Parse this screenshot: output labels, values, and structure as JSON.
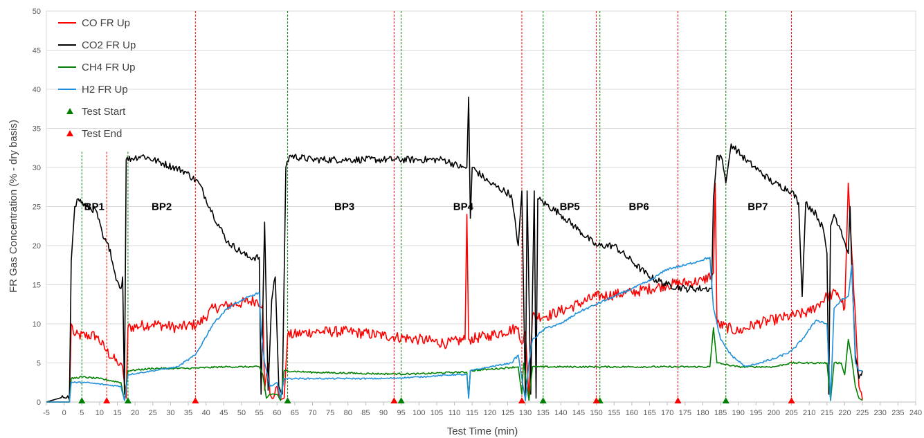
{
  "chart_data": {
    "type": "line",
    "title": "",
    "xlabel": "Test Time (min)",
    "ylabel": "FR Gas Concentration (% - dry basis)",
    "xlim": [
      -5,
      240
    ],
    "ylim": [
      0,
      50
    ],
    "x_ticks": [
      -5,
      0,
      5,
      10,
      15,
      20,
      25,
      30,
      35,
      40,
      45,
      50,
      55,
      60,
      65,
      70,
      75,
      80,
      85,
      90,
      95,
      100,
      105,
      110,
      115,
      120,
      125,
      130,
      135,
      140,
      145,
      150,
      155,
      160,
      165,
      170,
      175,
      180,
      185,
      190,
      195,
      200,
      205,
      210,
      215,
      220,
      225,
      230,
      235,
      240
    ],
    "y_ticks": [
      0,
      5,
      10,
      15,
      20,
      25,
      30,
      35,
      40,
      45,
      50
    ],
    "grid": "horizontal",
    "legend_position": "top-left",
    "series": [
      {
        "name": "CO FR Up",
        "color": "#ff0000",
        "noise": 0.7,
        "points": [
          [
            -5,
            0
          ],
          [
            1.5,
            0
          ],
          [
            2,
            10
          ],
          [
            3,
            8.5
          ],
          [
            9,
            8.5
          ],
          [
            12,
            6.5
          ],
          [
            15,
            5
          ],
          [
            16.5,
            4.5
          ],
          [
            17.5,
            0.5
          ],
          [
            18,
            9.5
          ],
          [
            25,
            10
          ],
          [
            32,
            9.5
          ],
          [
            38,
            10
          ],
          [
            42,
            12
          ],
          [
            48,
            12.5
          ],
          [
            54,
            13
          ],
          [
            56,
            12.5
          ],
          [
            56.5,
            1.5
          ],
          [
            57.5,
            5
          ],
          [
            58,
            1
          ],
          [
            59,
            0.5
          ],
          [
            60,
            2
          ],
          [
            61,
            0.3
          ],
          [
            62,
            0.5
          ],
          [
            63,
            8.5
          ],
          [
            70,
            9
          ],
          [
            80,
            9
          ],
          [
            90,
            8.5
          ],
          [
            100,
            8
          ],
          [
            108,
            7.5
          ],
          [
            113,
            8
          ],
          [
            113.5,
            24
          ],
          [
            114,
            8
          ],
          [
            120,
            8.5
          ],
          [
            128,
            9.5
          ],
          [
            129,
            7.5
          ],
          [
            130,
            9
          ],
          [
            131,
            0.5
          ],
          [
            132,
            11
          ],
          [
            136,
            11
          ],
          [
            142,
            12
          ],
          [
            150,
            13.5
          ],
          [
            160,
            14
          ],
          [
            170,
            15
          ],
          [
            180,
            15.5
          ],
          [
            183,
            16.5
          ],
          [
            183.5,
            28
          ],
          [
            184,
            10
          ],
          [
            190,
            9
          ],
          [
            195,
            10
          ],
          [
            200,
            10.5
          ],
          [
            205,
            11
          ],
          [
            210,
            11.5
          ],
          [
            215,
            13.5
          ],
          [
            218,
            14
          ],
          [
            220,
            12
          ],
          [
            221,
            28
          ],
          [
            222,
            19
          ],
          [
            224,
            2
          ],
          [
            225,
            0.3
          ]
        ]
      },
      {
        "name": "CO2 FR Up",
        "color": "#000000",
        "noise": 0.45,
        "points": [
          [
            -5,
            0
          ],
          [
            1,
            0.8
          ],
          [
            1.5,
            0.3
          ],
          [
            2,
            18
          ],
          [
            3,
            25
          ],
          [
            4,
            26
          ],
          [
            6,
            25
          ],
          [
            9,
            24.5
          ],
          [
            11,
            21
          ],
          [
            13,
            19.5
          ],
          [
            14,
            17
          ],
          [
            15,
            15.5
          ],
          [
            16,
            14.5
          ],
          [
            16.5,
            16
          ],
          [
            17,
            1
          ],
          [
            17.5,
            31
          ],
          [
            22,
            31.5
          ],
          [
            28,
            30.5
          ],
          [
            34,
            29.5
          ],
          [
            38,
            28
          ],
          [
            42,
            24
          ],
          [
            46,
            20.5
          ],
          [
            52,
            18.5
          ],
          [
            55,
            18.5
          ],
          [
            55.5,
            1
          ],
          [
            56.5,
            23
          ],
          [
            57.5,
            1.5
          ],
          [
            58.5,
            13
          ],
          [
            59.5,
            16
          ],
          [
            60.5,
            2
          ],
          [
            61.5,
            1
          ],
          [
            62.5,
            30
          ],
          [
            63.5,
            31.5
          ],
          [
            70,
            31
          ],
          [
            80,
            31
          ],
          [
            90,
            31
          ],
          [
            100,
            31
          ],
          [
            107,
            31
          ],
          [
            112,
            30
          ],
          [
            113.5,
            30
          ],
          [
            114,
            39
          ],
          [
            114.5,
            23.5
          ],
          [
            115,
            30
          ],
          [
            120,
            28
          ],
          [
            126,
            26.5
          ],
          [
            128,
            20
          ],
          [
            129,
            27
          ],
          [
            130,
            0.2
          ],
          [
            130.5,
            27
          ],
          [
            131.5,
            1
          ],
          [
            132.5,
            27
          ],
          [
            133,
            0.5
          ],
          [
            133.5,
            26
          ],
          [
            140,
            24
          ],
          [
            145,
            22
          ],
          [
            150,
            20
          ],
          [
            155,
            20
          ],
          [
            160,
            18
          ],
          [
            165,
            16
          ],
          [
            170,
            15
          ],
          [
            175,
            14.5
          ],
          [
            180,
            14.5
          ],
          [
            182.5,
            14.5
          ],
          [
            183,
            26
          ],
          [
            184,
            31.5
          ],
          [
            185.5,
            31
          ],
          [
            186.5,
            28
          ],
          [
            188,
            33
          ],
          [
            192,
            31
          ],
          [
            196,
            29.5
          ],
          [
            200,
            28
          ],
          [
            205,
            27
          ],
          [
            207,
            25.5
          ],
          [
            208,
            13.5
          ],
          [
            209,
            25.5
          ],
          [
            212,
            24
          ],
          [
            214,
            22
          ],
          [
            215,
            19
          ],
          [
            215.5,
            1
          ],
          [
            216,
            22.5
          ],
          [
            217,
            24
          ],
          [
            219,
            22
          ],
          [
            221,
            19
          ],
          [
            221.5,
            25
          ],
          [
            222,
            17
          ],
          [
            223,
            6
          ],
          [
            224,
            3
          ],
          [
            225,
            4
          ]
        ]
      },
      {
        "name": "CH4 FR Up",
        "color": "#008000",
        "noise": 0.18,
        "points": [
          [
            -5,
            0
          ],
          [
            1.5,
            0
          ],
          [
            2,
            3
          ],
          [
            5,
            3.2
          ],
          [
            10,
            3
          ],
          [
            16,
            2.5
          ],
          [
            17,
            0.2
          ],
          [
            18,
            4
          ],
          [
            25,
            4.3
          ],
          [
            35,
            4.3
          ],
          [
            45,
            4.5
          ],
          [
            55,
            4.5
          ],
          [
            56,
            3.5
          ],
          [
            57,
            0.5
          ],
          [
            58,
            1
          ],
          [
            60,
            1
          ],
          [
            61,
            0.2
          ],
          [
            62,
            4
          ],
          [
            70,
            3.8
          ],
          [
            80,
            3.7
          ],
          [
            90,
            3.6
          ],
          [
            100,
            3.6
          ],
          [
            110,
            3.8
          ],
          [
            113.5,
            3.8
          ],
          [
            114,
            0.5
          ],
          [
            114.5,
            4
          ],
          [
            120,
            4.2
          ],
          [
            128,
            4.5
          ],
          [
            129,
            1
          ],
          [
            129.5,
            5
          ],
          [
            131,
            0.2
          ],
          [
            132,
            4.5
          ],
          [
            140,
            4.5
          ],
          [
            150,
            4.5
          ],
          [
            160,
            4.5
          ],
          [
            170,
            4.5
          ],
          [
            182,
            4.5
          ],
          [
            183,
            9.5
          ],
          [
            184,
            5
          ],
          [
            190,
            4.5
          ],
          [
            200,
            4.5
          ],
          [
            205,
            5
          ],
          [
            210,
            5
          ],
          [
            215,
            5
          ],
          [
            216,
            0.2
          ],
          [
            217,
            5
          ],
          [
            219,
            5
          ],
          [
            220,
            3.5
          ],
          [
            221,
            8
          ],
          [
            222,
            5.5
          ],
          [
            223,
            2
          ],
          [
            224,
            0.5
          ],
          [
            225,
            0.2
          ]
        ]
      },
      {
        "name": "H2 FR Up",
        "color": "#1e90dc",
        "noise": 0.15,
        "points": [
          [
            -5,
            0
          ],
          [
            1.5,
            0
          ],
          [
            2,
            2.5
          ],
          [
            6,
            2.5
          ],
          [
            12,
            2.2
          ],
          [
            16,
            2
          ],
          [
            17,
            0.2
          ],
          [
            18,
            3.5
          ],
          [
            25,
            4
          ],
          [
            32,
            4.5
          ],
          [
            37,
            6
          ],
          [
            42,
            10
          ],
          [
            46,
            12
          ],
          [
            50,
            13
          ],
          [
            55,
            14
          ],
          [
            55.5,
            9
          ],
          [
            56.5,
            5
          ],
          [
            58,
            2
          ],
          [
            60,
            2.5
          ],
          [
            61,
            0.5
          ],
          [
            62,
            3
          ],
          [
            70,
            3
          ],
          [
            80,
            3
          ],
          [
            90,
            3
          ],
          [
            100,
            3.2
          ],
          [
            110,
            3.5
          ],
          [
            113.5,
            3.5
          ],
          [
            114,
            0.5
          ],
          [
            114.5,
            4
          ],
          [
            120,
            4.5
          ],
          [
            126,
            5
          ],
          [
            128,
            6
          ],
          [
            129,
            3
          ],
          [
            130,
            0.2
          ],
          [
            131,
            5
          ],
          [
            132,
            8
          ],
          [
            136,
            9.5
          ],
          [
            140,
            10
          ],
          [
            145,
            11.5
          ],
          [
            150,
            12.5
          ],
          [
            155,
            13.5
          ],
          [
            160,
            14.5
          ],
          [
            165,
            15.5
          ],
          [
            170,
            17
          ],
          [
            175,
            17.5
          ],
          [
            182,
            18.5
          ],
          [
            183,
            12
          ],
          [
            185,
            8
          ],
          [
            188,
            6
          ],
          [
            192,
            4.5
          ],
          [
            196,
            5
          ],
          [
            200,
            5.5
          ],
          [
            205,
            6.5
          ],
          [
            208,
            8
          ],
          [
            212,
            10.5
          ],
          [
            215,
            10
          ],
          [
            216,
            0.2
          ],
          [
            217,
            12
          ],
          [
            219,
            13
          ],
          [
            221,
            13.5
          ],
          [
            222,
            17.5
          ],
          [
            223,
            5
          ],
          [
            224,
            4
          ],
          [
            225,
            4
          ]
        ]
      }
    ],
    "test_start": {
      "name": "Test Start",
      "color": "#008000",
      "x": [
        5,
        18,
        63,
        95,
        135,
        151,
        186.5
      ]
    },
    "test_end": {
      "name": "Test End",
      "color": "#ff0000",
      "x": [
        12,
        37,
        93,
        129,
        150,
        173,
        205
      ]
    },
    "phases": [
      {
        "label": "BP1",
        "x": 8.5,
        "y": 25
      },
      {
        "label": "BP2",
        "x": 27.5,
        "y": 25
      },
      {
        "label": "BP3",
        "x": 79,
        "y": 25
      },
      {
        "label": "BP4",
        "x": 112.5,
        "y": 25
      },
      {
        "label": "BP5",
        "x": 142.5,
        "y": 25
      },
      {
        "label": "BP6",
        "x": 162,
        "y": 25
      },
      {
        "label": "BP7",
        "x": 195.5,
        "y": 25
      }
    ]
  }
}
